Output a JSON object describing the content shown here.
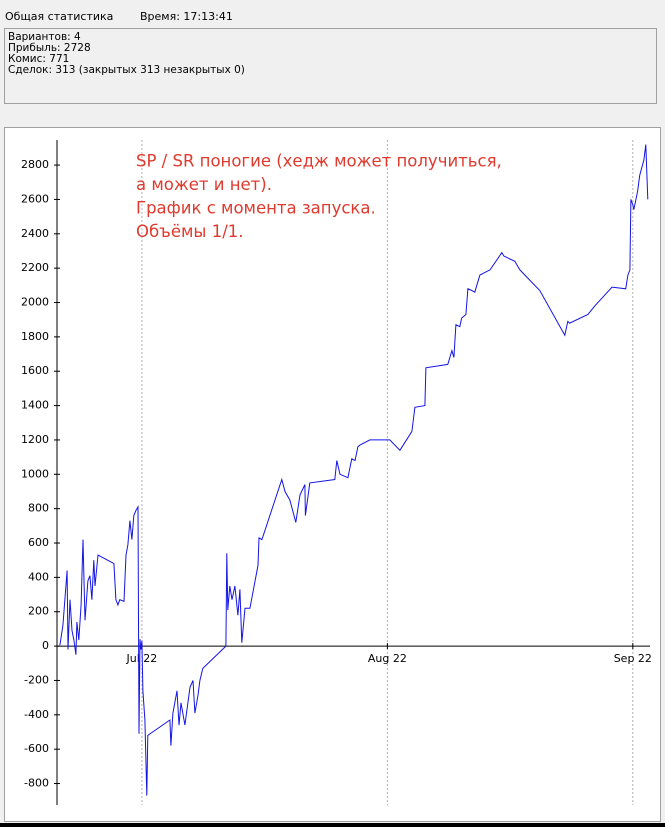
{
  "header": {
    "title": "Общая статистика",
    "time": "Время: 17:13:41"
  },
  "stats": [
    "Вариантов: 4",
    "Прибыль: 2728",
    "Комис: 771",
    "Сделок: 313  (закрытых 313 незакрытых 0)"
  ],
  "chart_data": {
    "type": "line",
    "annotation": [
      "SP / SR поногие (хедж может получиться,",
      "а может и нет).",
      "График с момента запуска.",
      "Объёмы 1/1."
    ],
    "color": "#1414e6",
    "x": [
      -0.334,
      -0.322,
      -0.305,
      -0.301,
      -0.293,
      -0.285,
      -0.277,
      -0.269,
      -0.265,
      -0.257,
      -0.248,
      -0.24,
      -0.232,
      -0.224,
      -0.22,
      -0.212,
      -0.204,
      -0.196,
      -0.191,
      -0.179,
      -0.114,
      -0.106,
      -0.098,
      -0.09,
      -0.073,
      -0.065,
      -0.057,
      -0.049,
      -0.041,
      -0.033,
      -0.024,
      -0.016,
      -0.012,
      -0.008,
      -0.004,
      0,
      0.004,
      0.012,
      0.02,
      0.024,
      0.114,
      0.118,
      0.126,
      0.143,
      0.151,
      0.159,
      0.175,
      0.196,
      0.208,
      0.216,
      0.228,
      0.236,
      0.248,
      0.342,
      0.346,
      0.35,
      0.358,
      0.367,
      0.379,
      0.391,
      0.399,
      0.407,
      0.42,
      0.44,
      0.473,
      0.477,
      0.489,
      0.57,
      0.583,
      0.603,
      0.627,
      0.644,
      0.664,
      0.666,
      0.684,
      0.786,
      0.794,
      0.807,
      0.839,
      0.855,
      0.868,
      0.88,
      0.888,
      0.929,
      1.01,
      1.051,
      1.1,
      1.112,
      1.153,
      1.157,
      1.246,
      1.263,
      1.271,
      1.279,
      1.295,
      1.303,
      1.32,
      1.328,
      1.344,
      1.356,
      1.377,
      1.418,
      1.466,
      1.475,
      1.519,
      1.54,
      1.621,
      1.723,
      1.735,
      1.743,
      1.817,
      1.845,
      1.915,
      1.971,
      1.98,
      1.988,
      1.992,
      2.0,
      2.004,
      2.02,
      2.028,
      2.045,
      2.053,
      2.061
    ],
    "values": [
      5,
      120,
      440,
      -20,
      270,
      90,
      35,
      -50,
      140,
      35,
      240,
      620,
      150,
      300,
      380,
      410,
      270,
      500,
      350,
      530,
      480,
      270,
      240,
      270,
      260,
      530,
      590,
      730,
      620,
      760,
      790,
      810,
      -510,
      40,
      -20,
      30,
      -260,
      -430,
      -870,
      -520,
      -430,
      -580,
      -390,
      -260,
      -460,
      -330,
      -460,
      -240,
      -200,
      -390,
      -290,
      -200,
      -130,
      0,
      540,
      210,
      350,
      270,
      350,
      180,
      330,
      20,
      220,
      220,
      470,
      630,
      620,
      970,
      900,
      850,
      720,
      880,
      940,
      760,
      950,
      970,
      1080,
      1000,
      980,
      1090,
      1080,
      1160,
      1170,
      1200,
      1200,
      1140,
      1250,
      1390,
      1400,
      1620,
      1640,
      1720,
      1680,
      1870,
      1860,
      1910,
      1930,
      2080,
      2070,
      2060,
      2160,
      2190,
      2290,
      2270,
      2240,
      2190,
      2070,
      1810,
      1890,
      1880,
      1930,
      1980,
      2090,
      2080,
      2160,
      2190,
      2600,
      2570,
      2540,
      2650,
      2740,
      2830,
      2920,
      2600
    ],
    "xlim": [
      -0.346,
      2.07
    ],
    "ylim": [
      -925,
      2946
    ],
    "xticks": [
      {
        "value": 0,
        "label": "Jul 22"
      },
      {
        "value": 1,
        "label": "Aug 22"
      },
      {
        "value": 2,
        "label": "Sep 22"
      }
    ],
    "yticks": [
      -800,
      -600,
      -400,
      -200,
      0,
      200,
      400,
      600,
      800,
      1000,
      1200,
      1400,
      1600,
      1800,
      2000,
      2200,
      2400,
      2600,
      2800
    ],
    "grid": "x"
  }
}
